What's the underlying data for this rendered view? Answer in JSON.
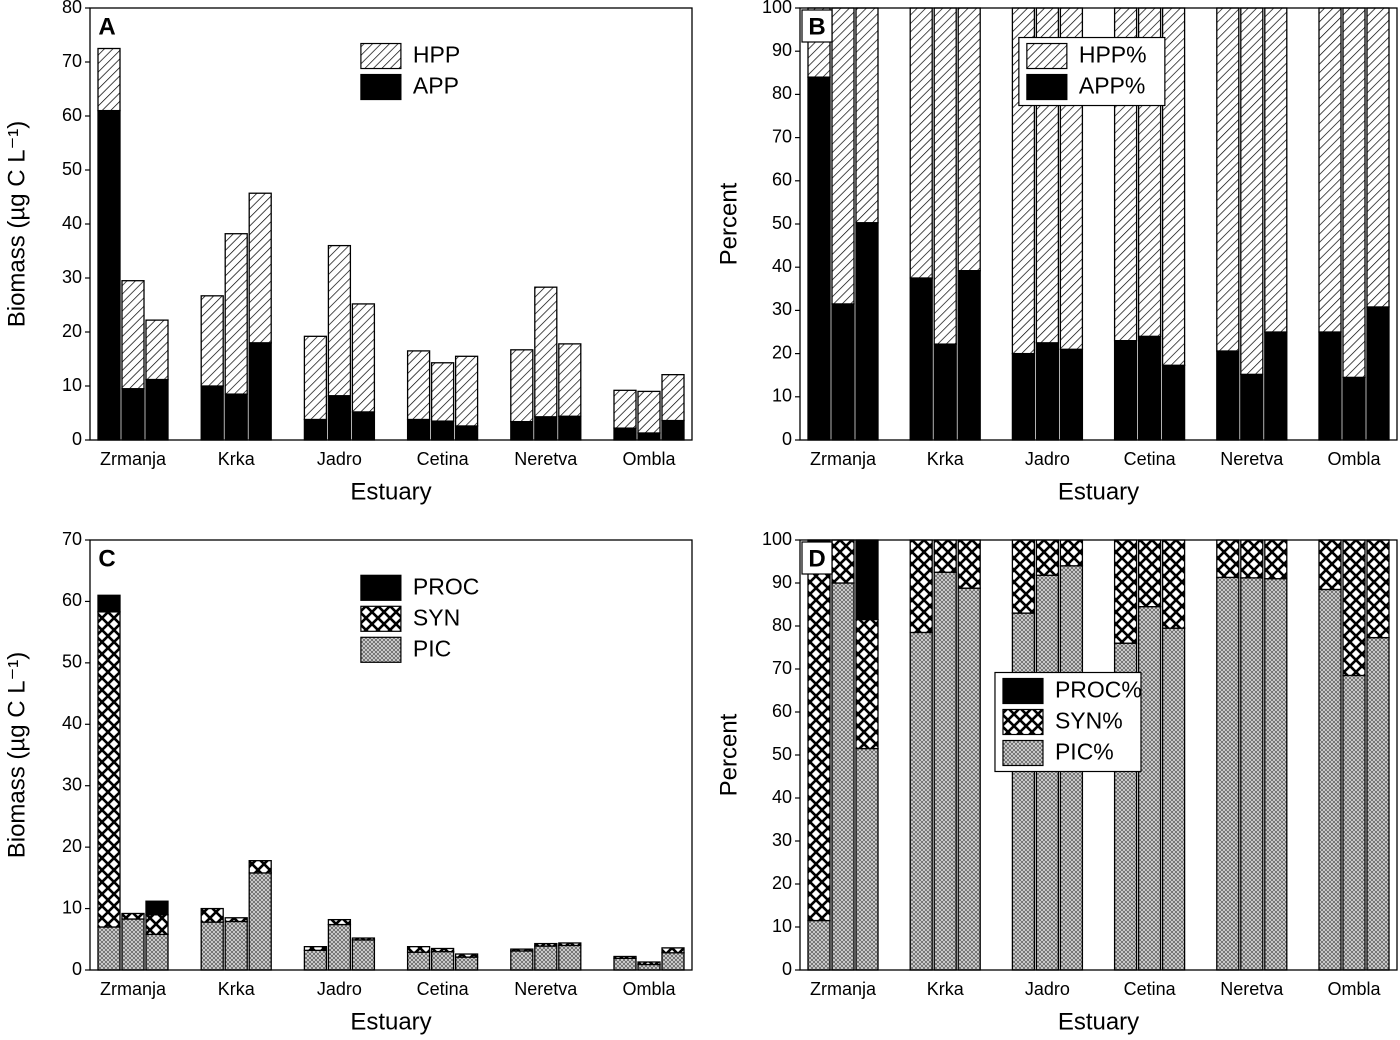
{
  "chart_data": [
    {
      "type": "bar",
      "stacked": true,
      "label": "A",
      "label_frame": false,
      "x_label": "Estuary",
      "y_label": "Biomass (µg C L⁻¹)",
      "categories": [
        null,
        "Zrmanja",
        null,
        null,
        "Krka",
        null,
        null,
        "Jadro",
        null,
        null,
        "Cetina",
        null,
        null,
        "Neretva",
        null,
        null,
        "Ombla",
        null
      ],
      "series": [
        {
          "name": "APP",
          "color": "#000000",
          "pattern": "solid",
          "values": [
            61,
            9.5,
            11.2,
            10,
            8.5,
            18,
            3.8,
            8.2,
            5.2,
            3.8,
            3.5,
            2.6,
            3.4,
            4.3,
            4.4,
            2.2,
            1.3,
            3.6
          ]
        },
        {
          "name": "HPP",
          "color": "#000000",
          "pattern": "hatch",
          "values": [
            11.5,
            20,
            11,
            16.7,
            29.7,
            27.7,
            15.4,
            27.8,
            20,
            12.7,
            10.8,
            12.9,
            13.3,
            24,
            13.4,
            7,
            7.7,
            8.5
          ]
        }
      ],
      "ylim": [
        0,
        80
      ],
      "yticks": [
        0,
        10,
        20,
        30,
        40,
        50,
        60,
        70,
        80
      ],
      "legend": "upper center",
      "legend_frame": false
    },
    {
      "type": "bar",
      "stacked": true,
      "label": "B",
      "label_frame": true,
      "x_label": "Estuary",
      "y_label": "Percent",
      "categories": [
        null,
        "Zrmanja",
        null,
        null,
        "Krka",
        null,
        null,
        "Jadro",
        null,
        null,
        "Cetina",
        null,
        null,
        "Neretva",
        null,
        null,
        "Ombla",
        null
      ],
      "series": [
        {
          "name": "APP%",
          "color": "#000000",
          "pattern": "solid",
          "values": [
            84,
            31.5,
            50.3,
            37.5,
            22.2,
            39.2,
            20,
            22.5,
            21,
            23,
            24,
            17.3,
            20.6,
            15.2,
            25,
            25,
            14.5,
            30.8
          ]
        },
        {
          "name": "HPP%",
          "color": "#000000",
          "pattern": "hatch",
          "values": [
            16,
            68.5,
            49.7,
            62.5,
            77.8,
            60.8,
            80,
            77.5,
            79,
            77,
            76,
            82.7,
            79.4,
            84.8,
            75,
            75,
            85.5,
            69.2
          ]
        }
      ],
      "ylim": [
        0,
        100
      ],
      "yticks": [
        0,
        10,
        20,
        30,
        40,
        50,
        60,
        70,
        80,
        90,
        100
      ],
      "legend": "upper left",
      "legend_frame": true
    },
    {
      "type": "bar",
      "stacked": true,
      "label": "C",
      "label_frame": false,
      "x_label": "Estuary",
      "y_label": "Biomass (µg C L⁻¹)",
      "categories": [
        null,
        "Zrmanja",
        null,
        null,
        "Krka",
        null,
        null,
        "Jadro",
        null,
        null,
        "Cetina",
        null,
        null,
        "Neretva",
        null,
        null,
        "Ombla",
        null
      ],
      "series": [
        {
          "name": "PIC",
          "color": "#888888",
          "pattern": "fine-cross",
          "values": [
            7,
            8.3,
            5.8,
            7.8,
            7.9,
            15.8,
            3.2,
            7.4,
            4.9,
            2.9,
            3,
            2.1,
            3.1,
            3.9,
            4,
            1.9,
            0.9,
            2.8
          ]
        },
        {
          "name": "SYN",
          "color": "#000000",
          "pattern": "cross",
          "values": [
            51.3,
            0.9,
            3.2,
            2.2,
            0.6,
            2,
            0.6,
            0.8,
            0.3,
            0.9,
            0.5,
            0.5,
            0.3,
            0.4,
            0.4,
            0.3,
            0.4,
            0.8
          ]
        },
        {
          "name": "PROC",
          "color": "#000000",
          "pattern": "solid",
          "values": [
            2.7,
            0,
            2.2,
            0,
            0,
            0,
            0,
            0,
            0,
            0,
            0,
            0,
            0,
            0,
            0,
            0,
            0,
            0
          ]
        }
      ],
      "ylim": [
        0,
        70
      ],
      "yticks": [
        0,
        10,
        20,
        30,
        40,
        50,
        60,
        70
      ],
      "legend": "upper center",
      "legend_frame": false
    },
    {
      "type": "bar",
      "stacked": true,
      "label": "D",
      "label_frame": true,
      "x_label": "Estuary",
      "y_label": "Percent",
      "categories": [
        null,
        "Zrmanja",
        null,
        null,
        "Krka",
        null,
        null,
        "Jadro",
        null,
        null,
        "Cetina",
        null,
        null,
        "Neretva",
        null,
        null,
        "Ombla",
        null
      ],
      "series": [
        {
          "name": "PIC%",
          "color": "#888888",
          "pattern": "fine-cross",
          "values": [
            11.5,
            90,
            51.5,
            78.5,
            92.5,
            88.8,
            83,
            91.8,
            94,
            76,
            84.5,
            79.5,
            91.3,
            91.2,
            91,
            88.5,
            68.5,
            77.3
          ]
        },
        {
          "name": "SYN%",
          "color": "#000000",
          "pattern": "cross",
          "values": [
            84.5,
            10,
            30,
            21.5,
            7.5,
            11.2,
            17,
            8.2,
            6,
            24,
            15.5,
            20.5,
            8.7,
            8.8,
            9,
            11.5,
            31.5,
            22.7
          ]
        },
        {
          "name": "PROC%",
          "color": "#000000",
          "pattern": "solid",
          "values": [
            4,
            0,
            18.5,
            0,
            0,
            0,
            0,
            0,
            0,
            0,
            0,
            0,
            0,
            0,
            0,
            0,
            0,
            0
          ]
        }
      ],
      "ylim": [
        0,
        100
      ],
      "yticks": [
        0,
        10,
        20,
        30,
        40,
        50,
        60,
        70,
        80,
        90,
        100
      ],
      "legend": "center left",
      "legend_frame": true
    }
  ]
}
